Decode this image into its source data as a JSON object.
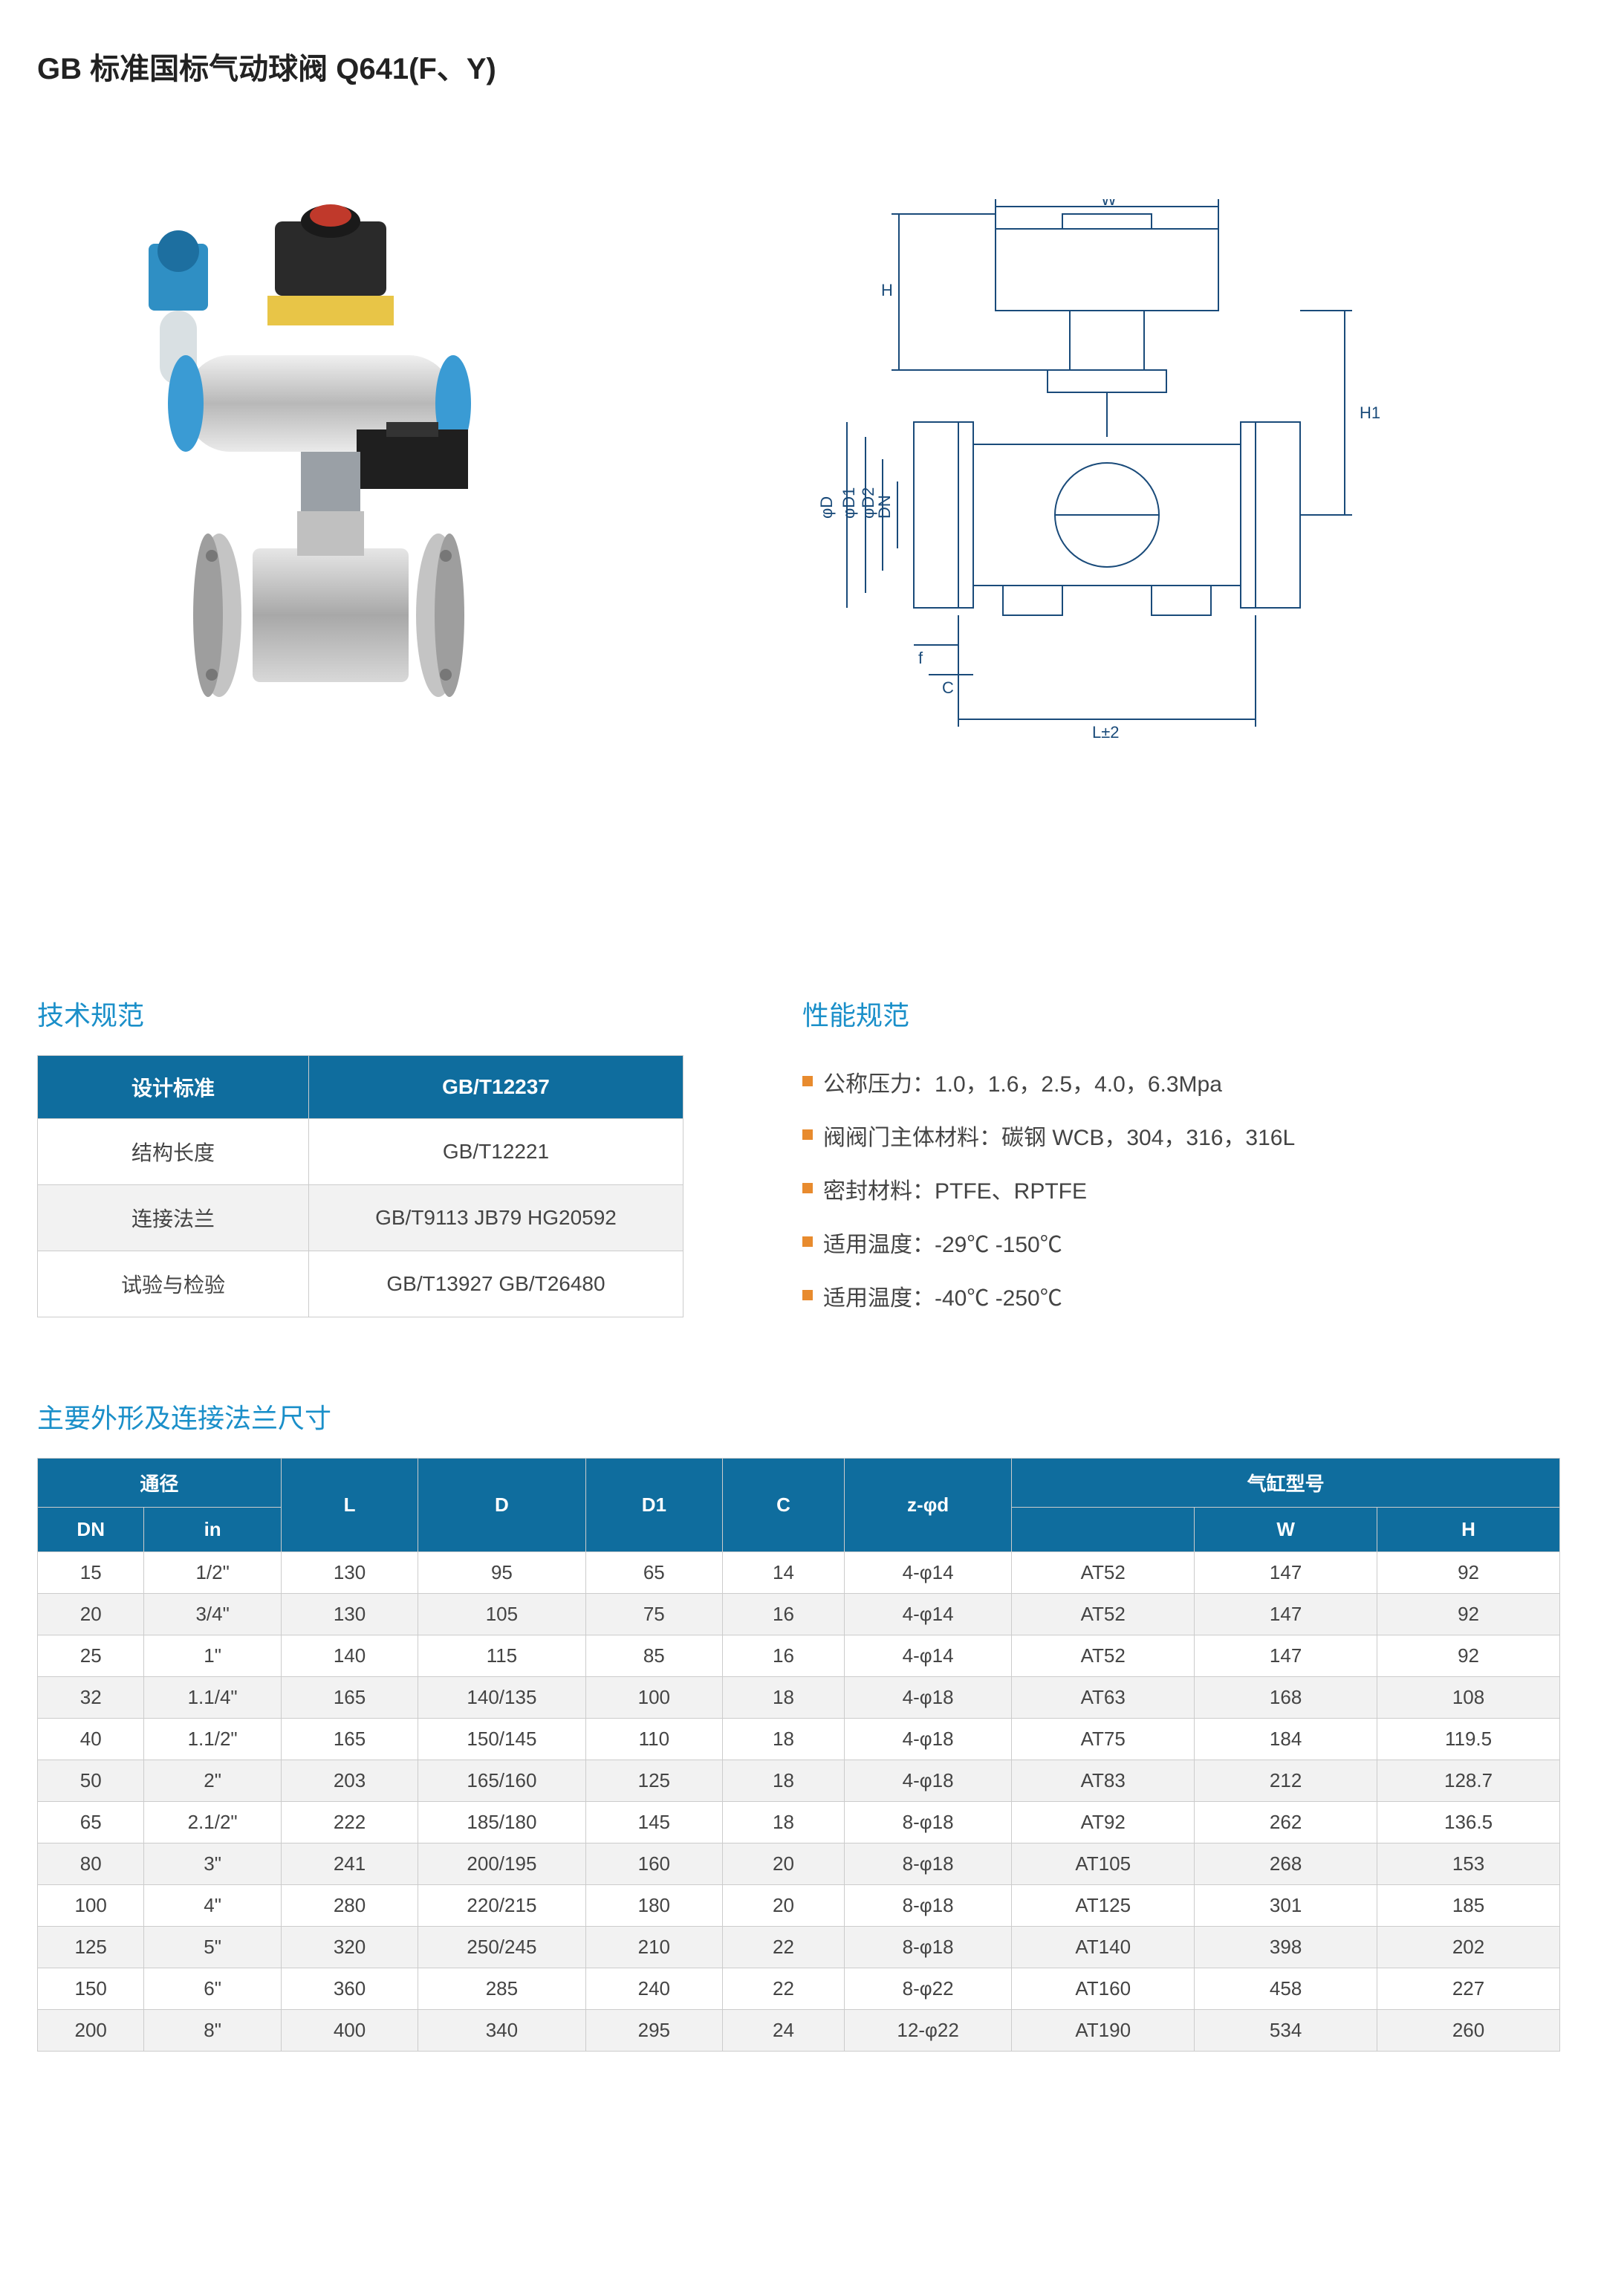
{
  "title": "GB 标准国标气动球阀 Q641(F、Y)",
  "tech_spec": {
    "heading": "技术规范",
    "header_left": "设计标准",
    "header_right": "GB/T12237",
    "rows": [
      {
        "label": "结构长度",
        "value": "GB/T12221"
      },
      {
        "label": "连接法兰",
        "value": "GB/T9113 JB79 HG20592"
      },
      {
        "label": "试验与检验",
        "value": "GB/T13927 GB/T26480"
      }
    ]
  },
  "perf_spec": {
    "heading": "性能规范",
    "items": [
      "公称压力：1.0，1.6，2.5，4.0，6.3Mpa",
      "阀阀门主体材料：碳钢 WCB，304，316，316L",
      "密封材料：PTFE、RPTFE",
      "适用温度：-29℃ -150℃",
      "适用温度：-40℃ -250℃"
    ]
  },
  "dims": {
    "heading": "主要外形及连接法兰尺寸",
    "group_headers": {
      "diameter": "通径",
      "cylinder": "气缸型号"
    },
    "columns": [
      "DN",
      "in",
      "L",
      "D",
      "D1",
      "C",
      "z-φd",
      "",
      "W",
      "H"
    ],
    "rows": [
      [
        "15",
        "1/2\"",
        "130",
        "95",
        "65",
        "14",
        "4-φ14",
        "AT52",
        "147",
        "92"
      ],
      [
        "20",
        "3/4\"",
        "130",
        "105",
        "75",
        "16",
        "4-φ14",
        "AT52",
        "147",
        "92"
      ],
      [
        "25",
        "1\"",
        "140",
        "115",
        "85",
        "16",
        "4-φ14",
        "AT52",
        "147",
        "92"
      ],
      [
        "32",
        "1.1/4\"",
        "165",
        "140/135",
        "100",
        "18",
        "4-φ18",
        "AT63",
        "168",
        "108"
      ],
      [
        "40",
        "1.1/2\"",
        "165",
        "150/145",
        "110",
        "18",
        "4-φ18",
        "AT75",
        "184",
        "119.5"
      ],
      [
        "50",
        "2\"",
        "203",
        "165/160",
        "125",
        "18",
        "4-φ18",
        "AT83",
        "212",
        "128.7"
      ],
      [
        "65",
        "2.1/2\"",
        "222",
        "185/180",
        "145",
        "18",
        "8-φ18",
        "AT92",
        "262",
        "136.5"
      ],
      [
        "80",
        "3\"",
        "241",
        "200/195",
        "160",
        "20",
        "8-φ18",
        "AT105",
        "268",
        "153"
      ],
      [
        "100",
        "4\"",
        "280",
        "220/215",
        "180",
        "20",
        "8-φ18",
        "AT125",
        "301",
        "185"
      ],
      [
        "125",
        "5\"",
        "320",
        "250/245",
        "210",
        "22",
        "8-φ18",
        "AT140",
        "398",
        "202"
      ],
      [
        "150",
        "6\"",
        "360",
        "285",
        "240",
        "22",
        "8-φ22",
        "AT160",
        "458",
        "227"
      ],
      [
        "200",
        "8\"",
        "400",
        "340",
        "295",
        "24",
        "12-φ22",
        "AT190",
        "534",
        "260"
      ]
    ]
  },
  "diagram_labels": {
    "W": "W",
    "H": "H",
    "H1": "H1",
    "phiD": "φD",
    "phiD1": "φD1",
    "phiD2": "φD2",
    "DN": "DN",
    "f": "f",
    "C": "C",
    "L": "L±2"
  },
  "colors": {
    "brand_blue": "#1a8fc9",
    "table_header": "#0f6d9e",
    "bullet": "#e88b2e",
    "text": "#444444",
    "border": "#cccccc",
    "row_alt": "#f2f2f2"
  }
}
